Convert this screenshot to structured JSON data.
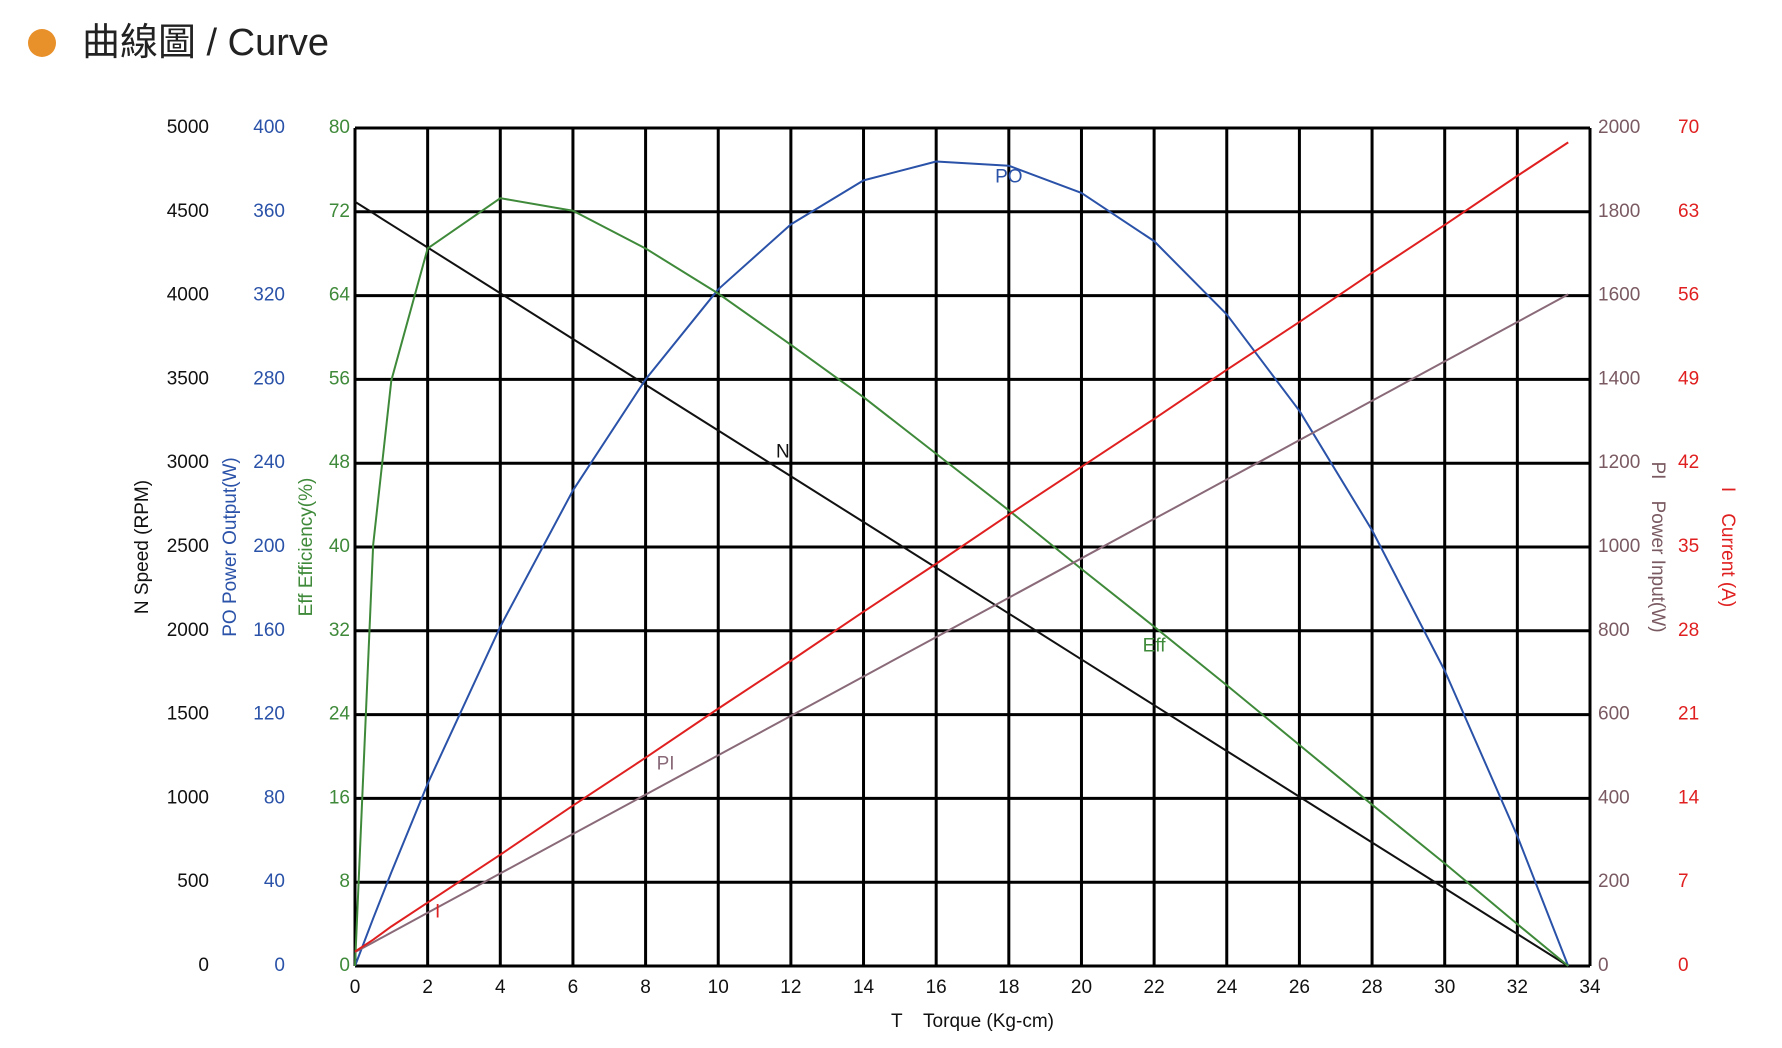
{
  "header": {
    "title": "曲線圖 / Curve"
  },
  "chart_data": {
    "type": "line",
    "xlabel": "T    Torque (Kg-cm)",
    "xlim": [
      0,
      34
    ],
    "xticks": [
      0,
      2,
      4,
      6,
      8,
      10,
      12,
      14,
      16,
      18,
      20,
      22,
      24,
      26,
      28,
      30,
      32,
      34
    ],
    "grid": true,
    "y_axes": [
      {
        "title": "N Speed (RPM)",
        "color": "#111111",
        "side": "left",
        "ylim": [
          0,
          5000
        ],
        "yticks": [
          0,
          500,
          1000,
          1500,
          2000,
          2500,
          3000,
          3500,
          4000,
          4500,
          5000
        ]
      },
      {
        "title": "PO Power Output(W)",
        "color": "#2a52a8",
        "side": "left",
        "ylim": [
          0,
          400
        ],
        "yticks": [
          0,
          40,
          80,
          120,
          160,
          200,
          240,
          280,
          320,
          360,
          400
        ]
      },
      {
        "title": "Eff Efficiency(%)",
        "color": "#3f8a3a",
        "side": "left",
        "ylim": [
          0,
          80
        ],
        "yticks": [
          0,
          8,
          16,
          24,
          32,
          40,
          48,
          56,
          64,
          72,
          80
        ]
      },
      {
        "title": "PI    Power Input(W)",
        "color": "#7a5a62",
        "side": "right",
        "ylim": [
          0,
          2000
        ],
        "yticks": [
          0,
          200,
          400,
          600,
          800,
          1000,
          1200,
          1400,
          1600,
          1800,
          2000
        ]
      },
      {
        "title": "I    Current (A)",
        "color": "#e02020",
        "side": "right",
        "ylim": [
          0,
          70
        ],
        "yticks": [
          0,
          7,
          14,
          21,
          28,
          35,
          42,
          49,
          56,
          63,
          70
        ]
      }
    ],
    "x": [
      0,
      0.5,
      1,
      2,
      4,
      6,
      8,
      10,
      12,
      14,
      16,
      18,
      20,
      22,
      24,
      26,
      28,
      30,
      32,
      33.4
    ],
    "series": [
      {
        "name": "N",
        "color": "#111111",
        "axis": 0,
        "values": [
          4560,
          4492,
          4423,
          4287,
          4014,
          3741,
          3468,
          3195,
          2922,
          2649,
          2376,
          2103,
          1829,
          1556,
          1283,
          1010,
          737,
          464,
          191,
          0
        ]
      },
      {
        "name": "PO",
        "color": "#2a52a8",
        "axis": 1,
        "values": [
          0,
          22.7,
          44.7,
          87,
          162,
          227,
          280,
          323,
          354,
          375,
          384,
          382,
          369,
          346,
          311,
          265,
          208,
          141,
          62,
          0
        ]
      },
      {
        "name": "Eff",
        "color": "#3f8a3a",
        "axis": 2,
        "values": [
          0,
          40.2,
          55.9,
          68.5,
          73.3,
          72.1,
          68.5,
          64.2,
          59.3,
          54.3,
          48.9,
          43.5,
          37.9,
          32.4,
          26.8,
          21.1,
          15.4,
          9.8,
          4.0,
          0
        ]
      },
      {
        "name": "PI",
        "color": "#8a6a78",
        "axis": 3,
        "values": [
          33,
          56.5,
          80,
          127,
          221,
          315,
          409,
          503,
          597,
          691,
          785,
          879,
          973,
          1067,
          1161,
          1255,
          1349,
          1443,
          1537,
          1603
        ]
      },
      {
        "name": "I",
        "color": "#e02020",
        "axis": 4,
        "values": [
          1.2,
          2.2,
          3.3,
          5.3,
          9.3,
          13.4,
          17.4,
          21.5,
          25.5,
          29.6,
          33.6,
          37.7,
          41.7,
          45.7,
          49.8,
          53.8,
          57.9,
          61.9,
          66.0,
          68.8
        ]
      }
    ]
  }
}
